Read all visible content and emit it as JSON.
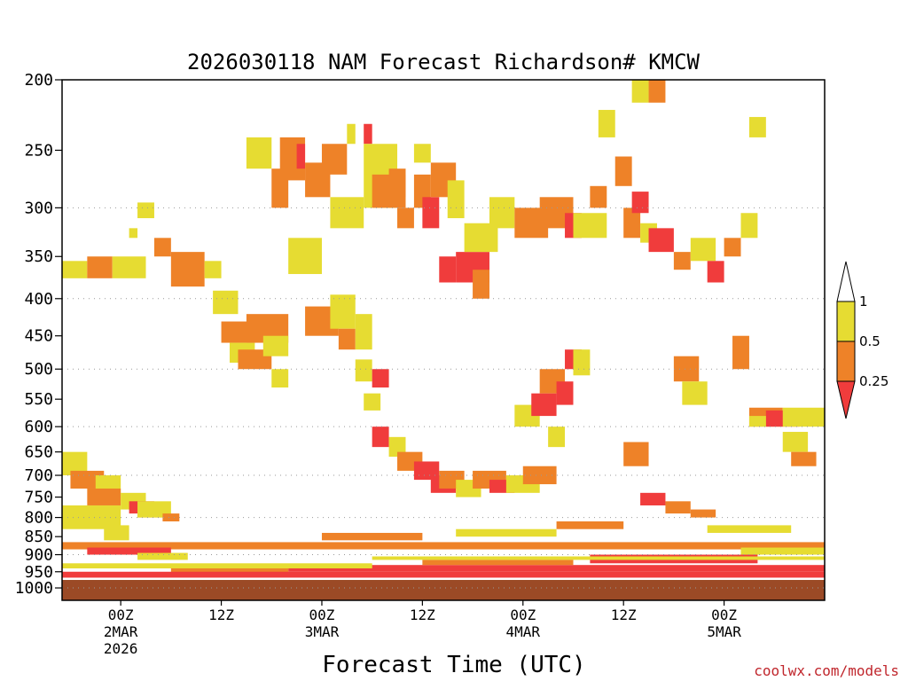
{
  "chart_data": {
    "type": "heatmap",
    "title": "2026030118 NAM Forecast Richardson# KMCW",
    "xlabel": "Forecast Time (UTC)",
    "ylabel": "",
    "credit": "coolwx.com/models",
    "x_start_hours": -7,
    "x_end_hours": 84,
    "y_range_hpa": [
      1000,
      200
    ],
    "y_ticks": [
      200,
      250,
      300,
      350,
      400,
      450,
      500,
      550,
      600,
      650,
      700,
      750,
      800,
      850,
      900,
      950,
      1000
    ],
    "gridlines": [
      300,
      400,
      500,
      600,
      700,
      800,
      900,
      1000
    ],
    "x_ticks": [
      {
        "hour": 0,
        "lines": [
          "00Z",
          "2MAR",
          "2026"
        ]
      },
      {
        "hour": 12,
        "lines": [
          "12Z"
        ]
      },
      {
        "hour": 24,
        "lines": [
          "00Z",
          "3MAR"
        ]
      },
      {
        "hour": 36,
        "lines": [
          "12Z"
        ]
      },
      {
        "hour": 48,
        "lines": [
          "00Z",
          "4MAR"
        ]
      },
      {
        "hour": 60,
        "lines": [
          "12Z"
        ]
      },
      {
        "hour": 72,
        "lines": [
          "00Z",
          "5MAR"
        ]
      }
    ],
    "legend": {
      "labels": [
        "1",
        "0.5",
        "0.25"
      ],
      "bins": [
        {
          "range": "<0.25",
          "color": "#f03c3c"
        },
        {
          "range": "0.25-0.5",
          "color": "#ee8228"
        },
        {
          "range": "0.5-1",
          "color": "#e6dc32"
        },
        {
          "range": ">1",
          "color": "#ffffff"
        }
      ]
    },
    "ground_color": "#9b4a26",
    "ground_top_hpa": 975,
    "cells": [
      [
        -7,
        -4,
        355,
        375,
        "y"
      ],
      [
        -4,
        -1,
        350,
        375,
        "o"
      ],
      [
        -1,
        3,
        350,
        375,
        "y"
      ],
      [
        2,
        4,
        295,
        310,
        "y"
      ],
      [
        1,
        2,
        320,
        330,
        "y"
      ],
      [
        6,
        10,
        345,
        385,
        "o"
      ],
      [
        10,
        12,
        355,
        375,
        "y"
      ],
      [
        4,
        6,
        330,
        350,
        "o"
      ],
      [
        11,
        14,
        390,
        420,
        "y"
      ],
      [
        12,
        16,
        430,
        460,
        "o"
      ],
      [
        13,
        16,
        460,
        490,
        "y"
      ],
      [
        14,
        18,
        470,
        500,
        "o"
      ],
      [
        15,
        20,
        420,
        460,
        "o"
      ],
      [
        17,
        20,
        450,
        480,
        "y"
      ],
      [
        18,
        20,
        500,
        530,
        "y"
      ],
      [
        15,
        18,
        240,
        265,
        "y"
      ],
      [
        18,
        20,
        265,
        300,
        "o"
      ],
      [
        19,
        22,
        240,
        275,
        "o"
      ],
      [
        21,
        22,
        245,
        265,
        "r"
      ],
      [
        22,
        25,
        260,
        290,
        "o"
      ],
      [
        24,
        27,
        245,
        270,
        "o"
      ],
      [
        26,
        28,
        295,
        310,
        "y"
      ],
      [
        25,
        29,
        290,
        320,
        "y"
      ],
      [
        20,
        24,
        330,
        370,
        "y"
      ],
      [
        22,
        26,
        410,
        450,
        "o"
      ],
      [
        25,
        28,
        395,
        440,
        "y"
      ],
      [
        26,
        28,
        440,
        470,
        "o"
      ],
      [
        27,
        28,
        230,
        245,
        "y"
      ],
      [
        29,
        30,
        230,
        245,
        "r"
      ],
      [
        29,
        33,
        245,
        300,
        "y"
      ],
      [
        30,
        34,
        270,
        300,
        "o"
      ],
      [
        32,
        34,
        265,
        290,
        "o"
      ],
      [
        33,
        35,
        300,
        320,
        "o"
      ],
      [
        35,
        37,
        245,
        260,
        "y"
      ],
      [
        35,
        37,
        270,
        300,
        "o"
      ],
      [
        36,
        38,
        290,
        320,
        "r"
      ],
      [
        37,
        40,
        260,
        290,
        "o"
      ],
      [
        39,
        41,
        275,
        310,
        "y"
      ],
      [
        38,
        40,
        350,
        380,
        "r"
      ],
      [
        40,
        44,
        345,
        380,
        "r"
      ],
      [
        42,
        44,
        365,
        400,
        "o"
      ],
      [
        41,
        45,
        315,
        345,
        "y"
      ],
      [
        44,
        47,
        290,
        320,
        "y"
      ],
      [
        47,
        51,
        300,
        330,
        "o"
      ],
      [
        50,
        54,
        290,
        320,
        "o"
      ],
      [
        53,
        55,
        305,
        330,
        "r"
      ],
      [
        54,
        58,
        305,
        330,
        "y"
      ],
      [
        56,
        58,
        280,
        300,
        "o"
      ],
      [
        57,
        59,
        220,
        240,
        "y"
      ],
      [
        59,
        61,
        255,
        280,
        "o"
      ],
      [
        60,
        62,
        300,
        330,
        "o"
      ],
      [
        61,
        63,
        285,
        305,
        "r"
      ],
      [
        62,
        64,
        315,
        335,
        "y"
      ],
      [
        63,
        66,
        320,
        345,
        "r"
      ],
      [
        66,
        68,
        345,
        365,
        "o"
      ],
      [
        68,
        71,
        330,
        355,
        "y"
      ],
      [
        70,
        72,
        355,
        380,
        "r"
      ],
      [
        72,
        74,
        330,
        350,
        "o"
      ],
      [
        74,
        76,
        305,
        330,
        "y"
      ],
      [
        61,
        63,
        200,
        215,
        "y"
      ],
      [
        63,
        65,
        200,
        215,
        "o"
      ],
      [
        75,
        77,
        225,
        240,
        "y"
      ],
      [
        28,
        30,
        420,
        470,
        "y"
      ],
      [
        28,
        30,
        485,
        520,
        "y"
      ],
      [
        30,
        32,
        500,
        530,
        "r"
      ],
      [
        29,
        31,
        540,
        570,
        "y"
      ],
      [
        30,
        32,
        600,
        640,
        "r"
      ],
      [
        32,
        34,
        620,
        660,
        "y"
      ],
      [
        33,
        36,
        650,
        690,
        "o"
      ],
      [
        35,
        38,
        670,
        710,
        "r"
      ],
      [
        37,
        40,
        700,
        740,
        "r"
      ],
      [
        38,
        41,
        690,
        730,
        "o"
      ],
      [
        40,
        43,
        710,
        750,
        "y"
      ],
      [
        42,
        46,
        690,
        730,
        "o"
      ],
      [
        44,
        47,
        710,
        740,
        "r"
      ],
      [
        46,
        50,
        700,
        740,
        "y"
      ],
      [
        48,
        52,
        680,
        720,
        "o"
      ],
      [
        47,
        50,
        560,
        600,
        "y"
      ],
      [
        49,
        52,
        540,
        580,
        "r"
      ],
      [
        50,
        53,
        500,
        540,
        "o"
      ],
      [
        52,
        54,
        520,
        560,
        "r"
      ],
      [
        53,
        55,
        470,
        500,
        "r"
      ],
      [
        51,
        53,
        600,
        640,
        "y"
      ],
      [
        54,
        56,
        470,
        510,
        "y"
      ],
      [
        60,
        63,
        630,
        680,
        "o"
      ],
      [
        62,
        65,
        740,
        770,
        "r"
      ],
      [
        65,
        68,
        760,
        790,
        "o"
      ],
      [
        68,
        71,
        780,
        800,
        "o"
      ],
      [
        66,
        69,
        480,
        520,
        "o"
      ],
      [
        67,
        70,
        520,
        560,
        "y"
      ],
      [
        75,
        79,
        565,
        600,
        "o"
      ],
      [
        77,
        81,
        570,
        600,
        "r"
      ],
      [
        79,
        84,
        565,
        600,
        "y"
      ],
      [
        79,
        82,
        610,
        650,
        "y"
      ],
      [
        80,
        83,
        650,
        680,
        "o"
      ],
      [
        73,
        75,
        450,
        500,
        "o"
      ],
      [
        75,
        77,
        580,
        600,
        "y"
      ],
      [
        -7,
        -4,
        650,
        700,
        "y"
      ],
      [
        -6,
        -2,
        690,
        730,
        "o"
      ],
      [
        -3,
        0,
        700,
        760,
        "y"
      ],
      [
        -4,
        0,
        730,
        770,
        "o"
      ],
      [
        0,
        3,
        740,
        780,
        "y"
      ],
      [
        1,
        4,
        760,
        790,
        "r"
      ],
      [
        2,
        5,
        770,
        800,
        "o"
      ],
      [
        -7,
        0,
        770,
        830,
        "y"
      ],
      [
        2,
        6,
        760,
        800,
        "y"
      ],
      [
        5,
        7,
        790,
        810,
        "o"
      ],
      [
        -2,
        1,
        820,
        860,
        "y"
      ],
      [
        -7,
        84,
        865,
        885,
        "o"
      ],
      [
        -4,
        6,
        880,
        900,
        "r"
      ],
      [
        2,
        8,
        895,
        915,
        "y"
      ],
      [
        6,
        20,
        935,
        955,
        "o"
      ],
      [
        20,
        84,
        930,
        950,
        "r"
      ],
      [
        36,
        54,
        915,
        930,
        "o"
      ],
      [
        56,
        76,
        900,
        925,
        "r"
      ],
      [
        74,
        84,
        880,
        900,
        "y"
      ],
      [
        8,
        20,
        940,
        960,
        "o"
      ],
      [
        -7,
        84,
        950,
        968,
        "r"
      ],
      [
        -7,
        30,
        925,
        940,
        "y"
      ],
      [
        30,
        84,
        905,
        915,
        "y"
      ],
      [
        24,
        36,
        840,
        860,
        "o"
      ],
      [
        40,
        52,
        830,
        850,
        "y"
      ],
      [
        52,
        60,
        810,
        830,
        "o"
      ],
      [
        70,
        80,
        820,
        840,
        "y"
      ]
    ]
  }
}
